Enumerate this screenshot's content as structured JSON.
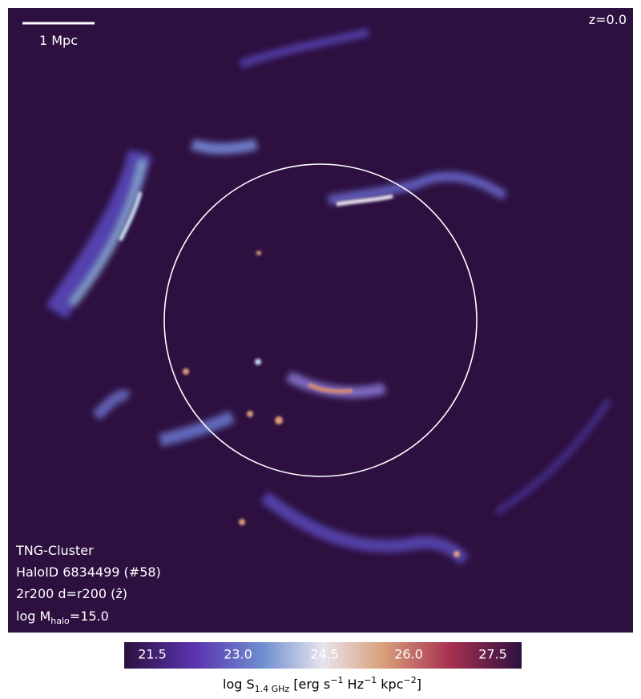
{
  "scale_bar": {
    "label": "1 Mpc"
  },
  "redshift": "z=0.0",
  "info": {
    "simulation": "TNG-Cluster",
    "halo": "HaloID 6834499 (#58)",
    "projection": "2r200 d=r200 (ẑ)",
    "mass": {
      "prefix": "log M",
      "subscript": "halo",
      "suffix": "=15.0"
    }
  },
  "colorbar": {
    "ticks": [
      "21.5",
      "23.0",
      "24.5",
      "26.0",
      "27.5"
    ],
    "label": {
      "prefix": "log S",
      "subscript": "1.4 GHz",
      "unit1": " [erg s",
      "exp1": "−1",
      "unit2": " Hz",
      "exp2": "−1",
      "unit3": " kpc",
      "exp3": "−2",
      "close": "]"
    }
  }
}
